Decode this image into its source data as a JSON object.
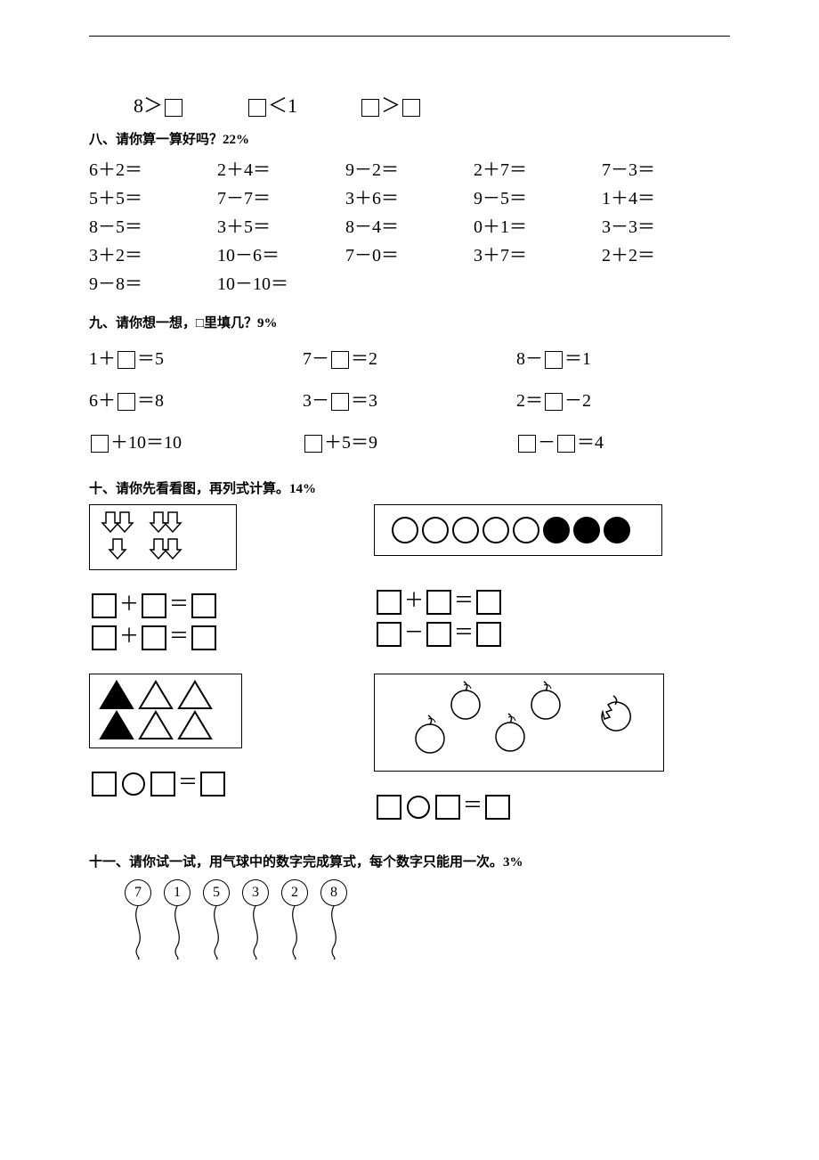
{
  "compare_row": {
    "items": [
      "8＞",
      "＜1",
      "＞"
    ]
  },
  "section8": {
    "title": "八、请你算一算好吗？22%",
    "cells": [
      "6＋2＝",
      "2＋4＝",
      "9－2＝",
      "2＋7＝",
      "7－3＝",
      "5＋5＝",
      "7－7＝",
      "3＋6＝",
      "9－5＝",
      "1＋4＝",
      "8－5＝",
      "3＋5＝",
      "8－4＝",
      "0＋1＝",
      "3－3＝",
      "3＋2＝",
      "10－6＝",
      "7－0＝",
      "3＋7＝",
      "2＋2＝",
      "9－8＝",
      "10－10＝",
      "",
      "",
      ""
    ]
  },
  "section9": {
    "title": "九、请你想一想，□里填几？9%",
    "rows": [
      [
        {
          "pre": "1＋",
          "post": "＝5"
        },
        {
          "pre": "7－",
          "post": "＝2"
        },
        {
          "pre": "8－",
          "post": "＝1"
        }
      ],
      [
        {
          "pre": "6＋",
          "post": "＝8"
        },
        {
          "pre": "3－",
          "post": "＝3"
        },
        {
          "pre": "2＝",
          "post": "－2"
        }
      ],
      [
        {
          "pre": "",
          "post": "＋10＝10"
        },
        {
          "pre": "",
          "post": "＋5＝9"
        },
        {
          "type": "double",
          "mid": "－",
          "post": "＝4"
        }
      ]
    ]
  },
  "section10": {
    "title": "十、请你先看看图，再列式计算。14%",
    "p1_arrows": {
      "row1": [
        2,
        2
      ],
      "row2": [
        1,
        2
      ]
    },
    "p2_circles": {
      "open": 5,
      "filled": 3
    },
    "p3_triangles": {
      "filled": 2,
      "open": 4
    },
    "p4_apples": {
      "whole": 4,
      "eaten": 1
    },
    "eq_pair1": [
      {
        "op": "＋"
      },
      {
        "op": "＋"
      }
    ],
    "eq_pair2": [
      {
        "op": "＋"
      },
      {
        "op": "－"
      }
    ]
  },
  "section11": {
    "title": "十一、请你试一试，用气球中的数字完成算式，每个数字只能用一次。3%",
    "balloons": [
      "7",
      "1",
      "5",
      "3",
      "2",
      "8"
    ]
  },
  "colors": {
    "text": "#000000",
    "bg": "#ffffff"
  }
}
